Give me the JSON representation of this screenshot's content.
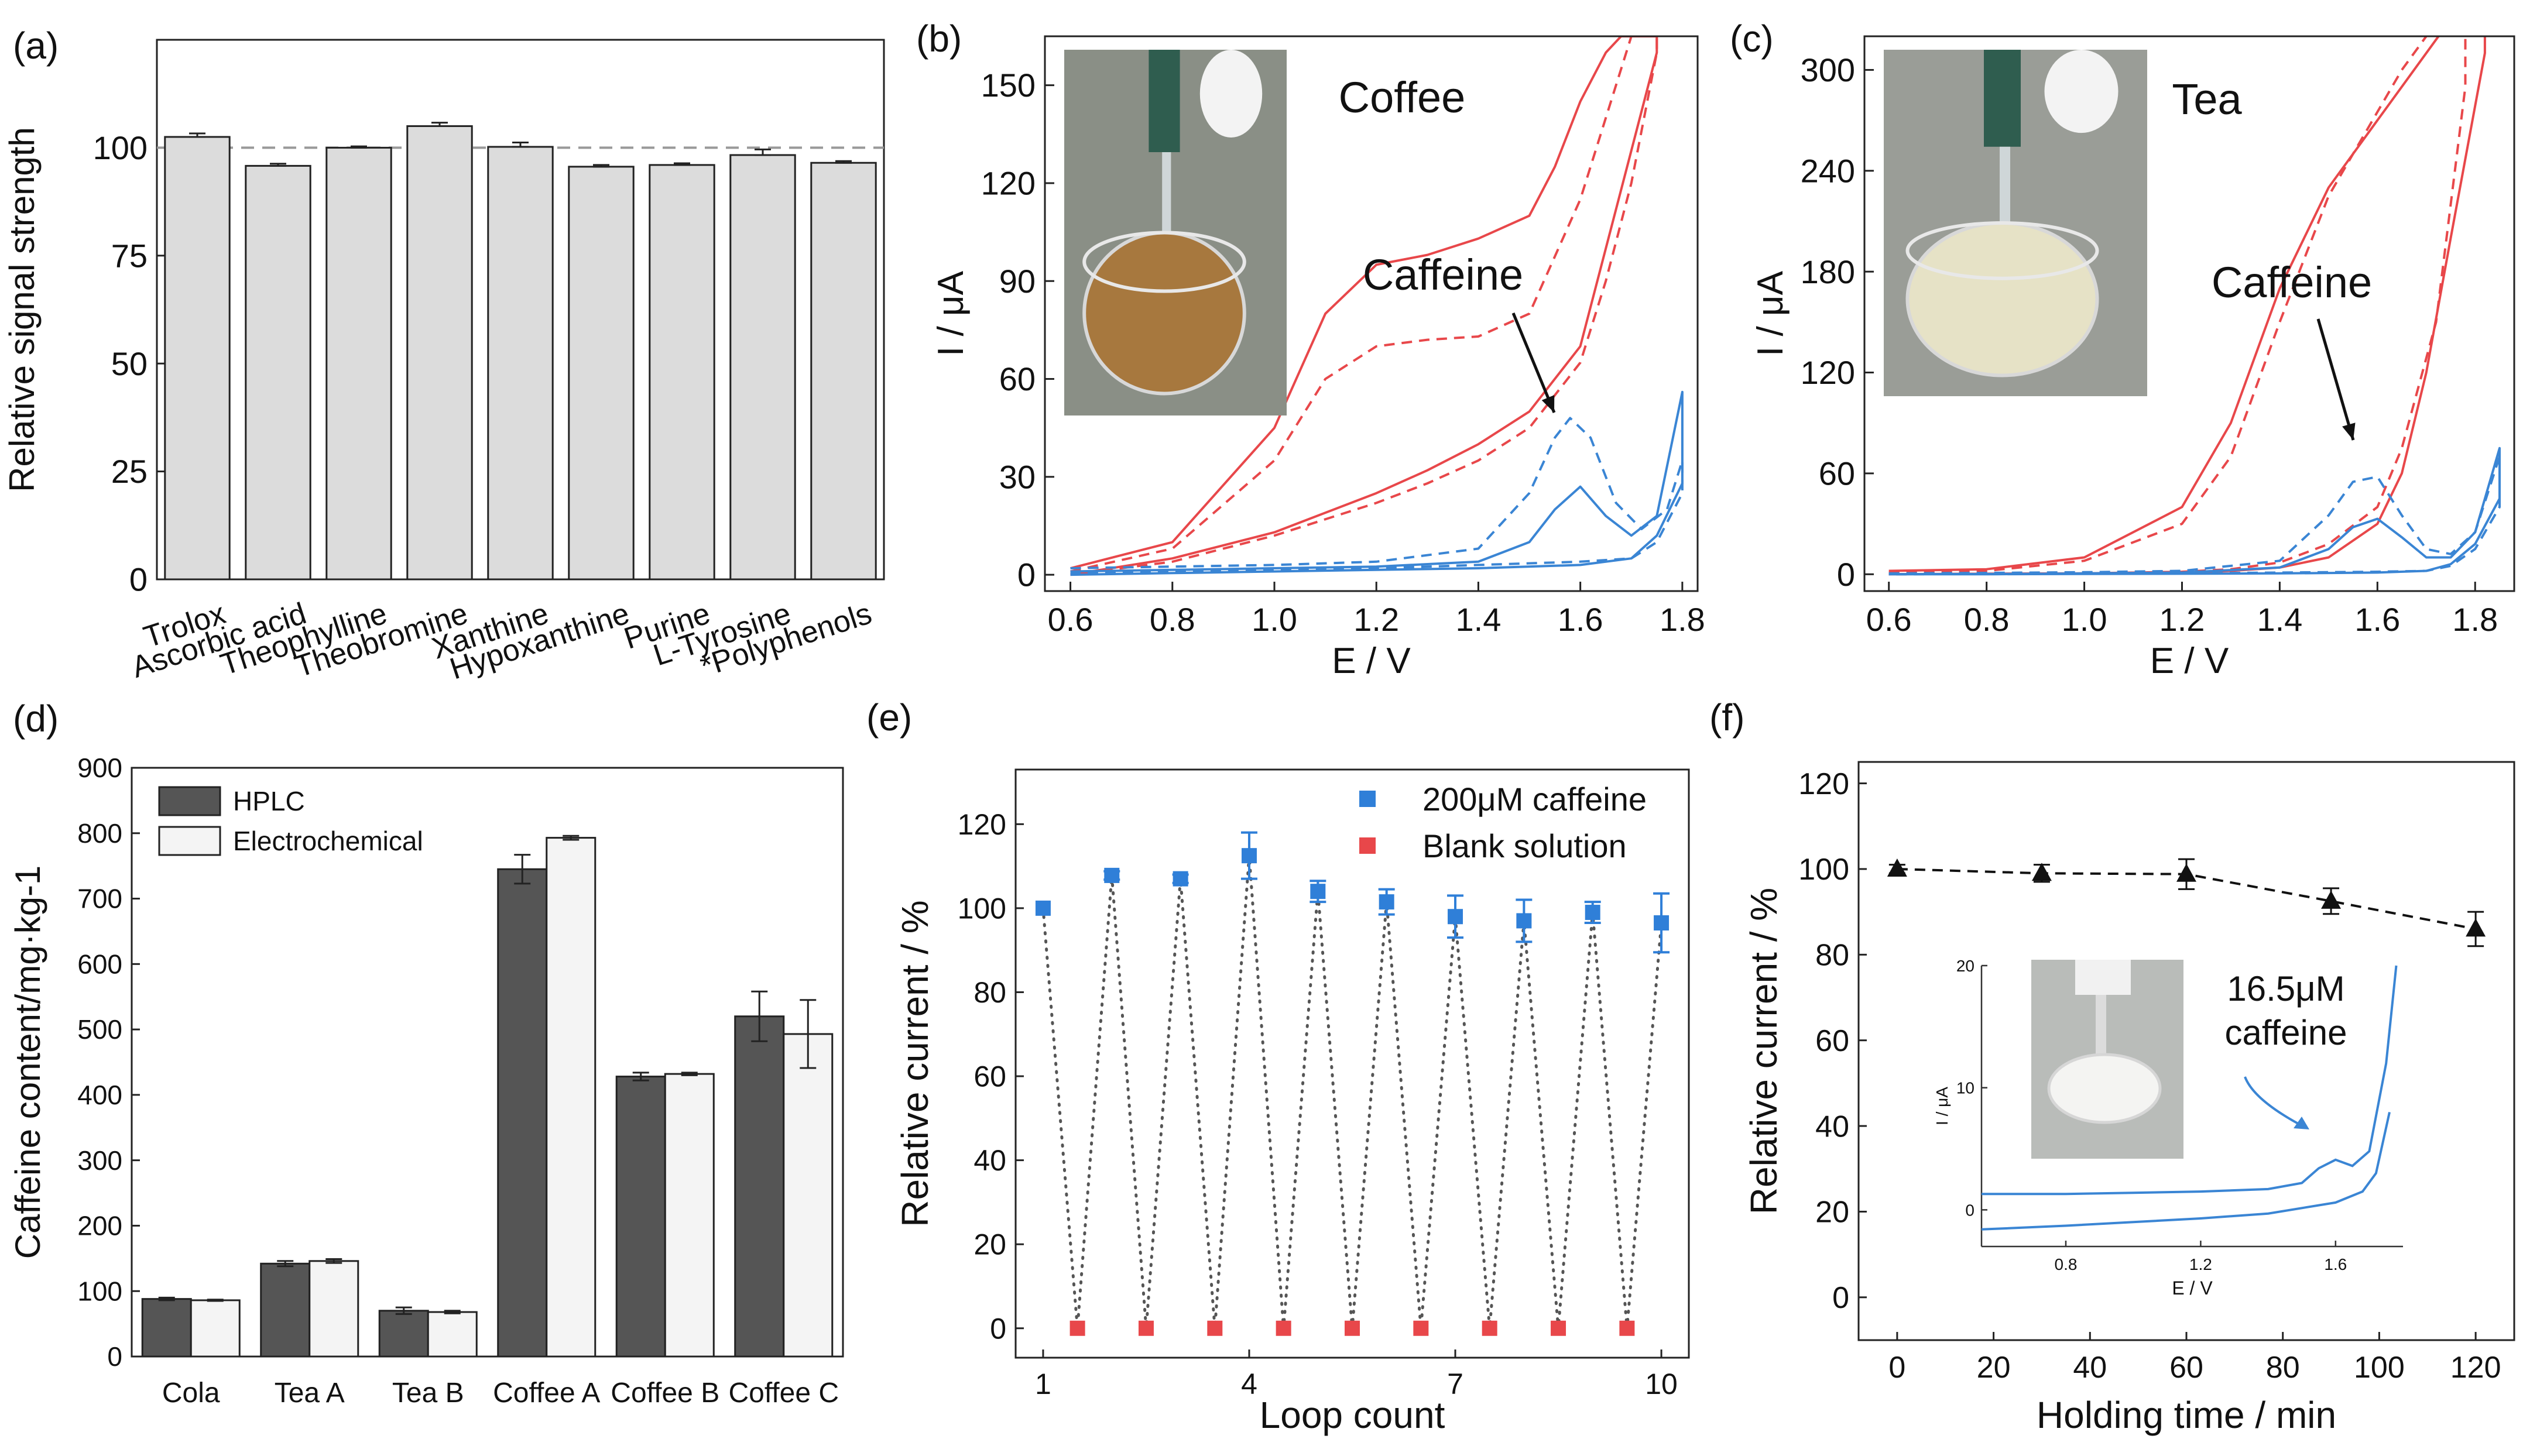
{
  "figure": {
    "panel_labels": [
      "(a)",
      "(b)",
      "(c)",
      "(d)",
      "(e)",
      "(f)"
    ]
  },
  "chart_data": [
    {
      "panel": "(a)",
      "type": "bar",
      "ylabel": "Relative signal strength",
      "xlabel": "",
      "ylim": [
        0,
        125
      ],
      "yticks": [
        0,
        25,
        50,
        75,
        100
      ],
      "reference_line": 100,
      "categories": [
        "Trolox",
        "Ascorbic acid",
        "Theophylline",
        "Theobromine",
        "Xanthine",
        "Hypoxanthine",
        "Purine",
        "L-Tyrosine",
        "*Polyphenols"
      ],
      "values": [
        102.5,
        95.8,
        100,
        105,
        100.2,
        95.6,
        96,
        98.3,
        96.5
      ],
      "errors": [
        0.8,
        0.5,
        0.3,
        0.8,
        1.0,
        0.4,
        0.4,
        1.3,
        0.4
      ]
    },
    {
      "panel": "(b)",
      "type": "line",
      "xlabel": "E / V",
      "ylabel": "I / μA",
      "xlim": [
        0.55,
        1.83
      ],
      "ylim": [
        -5,
        165
      ],
      "xticks": [
        0.6,
        0.8,
        1.0,
        1.2,
        1.4,
        1.6,
        1.8
      ],
      "yticks": [
        0,
        30,
        60,
        90,
        120,
        150
      ],
      "title": "Coffee",
      "annotation": "Caffeine",
      "series": [
        {
          "color": "#e8474a",
          "dash": false,
          "x": [
            0.6,
            0.8,
            1.0,
            1.1,
            1.2,
            1.3,
            1.4,
            1.5,
            1.55,
            1.6,
            1.65,
            1.68,
            1.72,
            1.75,
            1.75,
            1.7,
            1.65,
            1.6,
            1.5,
            1.4,
            1.3,
            1.2,
            1.0,
            0.8,
            0.6
          ],
          "y": [
            2,
            10,
            45,
            80,
            95,
            98,
            103,
            110,
            125,
            145,
            160,
            165,
            165,
            165,
            160,
            130,
            100,
            70,
            50,
            40,
            32,
            25,
            13,
            5,
            0
          ]
        },
        {
          "color": "#e8474a",
          "dash": true,
          "x": [
            0.6,
            0.8,
            1.0,
            1.1,
            1.2,
            1.3,
            1.4,
            1.5,
            1.6,
            1.65,
            1.7,
            1.72,
            1.75,
            1.75,
            1.7,
            1.65,
            1.6,
            1.5,
            1.4,
            1.3,
            1.2,
            1.0,
            0.8,
            0.6
          ],
          "y": [
            1,
            8,
            35,
            60,
            70,
            72,
            73,
            80,
            115,
            140,
            165,
            165,
            165,
            160,
            120,
            90,
            65,
            45,
            35,
            28,
            22,
            12,
            4,
            0
          ]
        },
        {
          "color": "#3a85d4",
          "dash": false,
          "x": [
            0.6,
            0.8,
            1.0,
            1.2,
            1.4,
            1.5,
            1.55,
            1.6,
            1.65,
            1.7,
            1.75,
            1.8,
            1.8,
            1.75,
            1.7,
            1.6,
            1.4,
            1.2,
            1.0,
            0.8,
            0.6
          ],
          "y": [
            1,
            1.5,
            2,
            2.5,
            4,
            10,
            20,
            27,
            18,
            12,
            18,
            56,
            28,
            12,
            5,
            3,
            2,
            1.5,
            1,
            0.5,
            0
          ]
        },
        {
          "color": "#3a85d4",
          "dash": true,
          "x": [
            0.6,
            0.8,
            1.0,
            1.2,
            1.4,
            1.5,
            1.55,
            1.58,
            1.62,
            1.67,
            1.72,
            1.77,
            1.8,
            1.8,
            1.75,
            1.7,
            1.6,
            1.4,
            1.2,
            1.0,
            0.8,
            0.6
          ],
          "y": [
            2,
            2.5,
            3,
            4,
            8,
            25,
            42,
            48,
            42,
            22,
            14,
            20,
            35,
            25,
            10,
            5,
            4,
            3,
            2,
            1.5,
            1,
            0.5
          ]
        }
      ]
    },
    {
      "panel": "(c)",
      "type": "line",
      "xlabel": "E / V",
      "ylabel": "I / μA",
      "xlim": [
        0.55,
        1.88
      ],
      "ylim": [
        -10,
        320
      ],
      "xticks": [
        0.6,
        0.8,
        1.0,
        1.2,
        1.4,
        1.6,
        1.8
      ],
      "yticks": [
        0,
        60,
        120,
        180,
        240,
        300
      ],
      "title": "Tea",
      "annotation": "Caffeine",
      "series": [
        {
          "color": "#e8474a",
          "dash": false,
          "x": [
            0.6,
            0.8,
            1.0,
            1.2,
            1.3,
            1.4,
            1.5,
            1.6,
            1.7,
            1.75,
            1.78,
            1.82,
            1.82,
            1.75,
            1.7,
            1.65,
            1.6,
            1.5,
            1.4,
            1.3,
            1.2,
            1.0,
            0.8,
            0.6
          ],
          "y": [
            2,
            3,
            10,
            40,
            90,
            170,
            230,
            270,
            310,
            330,
            330,
            330,
            310,
            200,
            120,
            60,
            30,
            10,
            4,
            2,
            1,
            0.5,
            0.3,
            0
          ]
        },
        {
          "color": "#e8474a",
          "dash": true,
          "x": [
            0.6,
            0.8,
            1.0,
            1.2,
            1.3,
            1.4,
            1.5,
            1.6,
            1.65,
            1.7,
            1.75,
            1.78,
            1.78,
            1.72,
            1.65,
            1.6,
            1.5,
            1.4,
            1.3,
            1.2,
            1.0,
            0.8,
            0.6
          ],
          "y": [
            1,
            2,
            8,
            30,
            70,
            150,
            225,
            275,
            300,
            320,
            330,
            330,
            290,
            150,
            75,
            40,
            18,
            7,
            3,
            1.5,
            0.5,
            0.3,
            0
          ]
        },
        {
          "color": "#3a85d4",
          "dash": false,
          "x": [
            0.6,
            0.8,
            1.0,
            1.2,
            1.4,
            1.5,
            1.55,
            1.6,
            1.65,
            1.7,
            1.75,
            1.8,
            1.85,
            1.85,
            1.8,
            1.75,
            1.7,
            1.6,
            1.4,
            1.2,
            1.0,
            0.8,
            0.6
          ],
          "y": [
            0,
            0,
            0.5,
            1,
            4,
            15,
            28,
            33,
            22,
            10,
            10,
            25,
            75,
            45,
            18,
            6,
            2,
            1,
            0.5,
            0.3,
            0.2,
            0,
            0
          ]
        },
        {
          "color": "#3a85d4",
          "dash": true,
          "x": [
            0.6,
            0.8,
            1.0,
            1.2,
            1.4,
            1.5,
            1.55,
            1.6,
            1.65,
            1.7,
            1.75,
            1.8,
            1.85,
            1.85,
            1.8,
            1.75,
            1.7,
            1.6,
            1.4,
            1.2,
            1.0,
            0.8,
            0.6
          ],
          "y": [
            0.5,
            0.8,
            1.2,
            2,
            8,
            35,
            55,
            58,
            35,
            15,
            12,
            25,
            70,
            40,
            15,
            5,
            2,
            1.5,
            1,
            0.5,
            0.3,
            0.2,
            0
          ]
        }
      ]
    },
    {
      "panel": "(d)",
      "type": "bar",
      "ylabel": "Caffeine content/mg·kg-1",
      "xlabel": "",
      "ylim": [
        0,
        900
      ],
      "yticks": [
        0,
        100,
        200,
        300,
        400,
        500,
        600,
        700,
        800,
        900
      ],
      "categories": [
        "Cola",
        "Tea A",
        "Tea B",
        "Coffee A",
        "Coffee B",
        "Coffee C"
      ],
      "series": [
        {
          "name": "HPLC",
          "color": "#555555",
          "values": [
            88,
            142,
            70,
            745,
            428,
            520
          ],
          "errors": [
            2,
            4,
            5,
            22,
            6,
            38
          ]
        },
        {
          "name": "Electrochemical",
          "color": "#f4f4f4",
          "values": [
            86,
            146,
            68,
            793,
            432,
            493
          ],
          "errors": [
            1,
            3,
            2,
            3,
            2,
            52
          ]
        }
      ]
    },
    {
      "panel": "(e)",
      "type": "scatter",
      "xlabel": "Loop count",
      "ylabel": "Relative current / %",
      "xlim": [
        0.6,
        10.4
      ],
      "ylim": [
        -7,
        133
      ],
      "xticks": [
        1,
        4,
        7,
        10
      ],
      "yticks": [
        0,
        20,
        40,
        60,
        80,
        100,
        120
      ],
      "series": [
        {
          "name": "200μM caffeine",
          "color": "#2f7fd8",
          "x": [
            1,
            2,
            3,
            4,
            5,
            6,
            7,
            8,
            9,
            10
          ],
          "y": [
            100,
            107.8,
            107,
            112.5,
            104,
            101.5,
            98,
            97,
            99,
            96.5
          ],
          "errors": [
            0,
            1,
            1,
            5.5,
            2.5,
            3,
            5,
            5,
            2.5,
            7
          ]
        },
        {
          "name": "Blank solution",
          "color": "#e8474a",
          "x": [
            1.5,
            2.5,
            3.5,
            4.5,
            5.5,
            6.5,
            7.5,
            8.5,
            9.5
          ],
          "y": [
            0,
            0,
            0,
            0,
            0,
            0,
            0,
            0,
            0
          ]
        }
      ]
    },
    {
      "panel": "(f)",
      "type": "line",
      "xlabel": "Holding time / min",
      "ylabel": "Relative current / %",
      "xlim": [
        -8,
        128
      ],
      "ylim": [
        -10,
        125
      ],
      "xticks": [
        0,
        20,
        40,
        60,
        80,
        100,
        120
      ],
      "yticks": [
        0,
        20,
        40,
        60,
        80,
        100,
        120
      ],
      "series": [
        {
          "color": "#111111",
          "x": [
            0,
            30,
            60,
            90,
            120
          ],
          "y": [
            100,
            99,
            98.8,
            92.5,
            86
          ],
          "errors": [
            1,
            2,
            3.5,
            3,
            4
          ]
        }
      ],
      "inset": {
        "xlabel": "E / V",
        "ylabel": "I / μA",
        "xlim": [
          0.55,
          1.8
        ],
        "ylim": [
          -3,
          20
        ],
        "xticks": [
          0.8,
          1.2,
          1.6
        ],
        "yticks": [
          0,
          10,
          20
        ],
        "annotation": "16.5μM caffeine",
        "series": [
          {
            "color": "#3a85d4",
            "x": [
              0.55,
              0.8,
              1.0,
              1.2,
              1.4,
              1.5,
              1.55,
              1.6,
              1.65,
              1.7,
              1.75,
              1.78
            ],
            "y": [
              1.3,
              1.3,
              1.4,
              1.5,
              1.7,
              2.2,
              3.4,
              4.1,
              3.6,
              4.8,
              12,
              20
            ]
          },
          {
            "color": "#3a85d4",
            "x": [
              1.76,
              1.72,
              1.68,
              1.6,
              1.4,
              1.2,
              1.0,
              0.8,
              0.55
            ],
            "y": [
              8,
              3,
              1.5,
              0.6,
              -0.3,
              -0.7,
              -1.0,
              -1.3,
              -1.6
            ]
          }
        ]
      }
    }
  ]
}
